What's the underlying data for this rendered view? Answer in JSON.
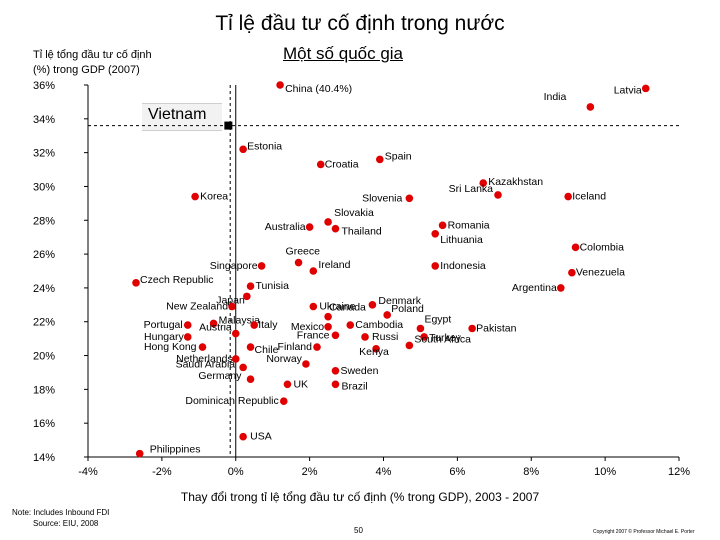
{
  "title": "Tỉ lệ đầu tư cố định trong nước",
  "subtitle": "Một số quốc gia",
  "footer": {
    "note": "Note: Includes Inbound FDI",
    "source": "Source: EIU, 2008",
    "page": "50",
    "copyright": "Copyright 2007 © Professor Michael E. Porter"
  },
  "chart_data": {
    "type": "scatter",
    "title": "Tỉ lệ đầu tư cố định trong nước",
    "subtitle": "Một số quốc gia",
    "ylabel_lines": [
      "Tỉ lệ tổng đầu tư cố định",
      "(%) trong GDP (2007)"
    ],
    "xlabel": "Thay đổi trong tỉ lệ tổng đầu tư cố định (% trong GDP), 2003 - 2007",
    "xlim": [
      -4,
      12
    ],
    "ylim": [
      14,
      36
    ],
    "xticks": [
      -4,
      -2,
      0,
      2,
      4,
      6,
      8,
      10,
      12
    ],
    "xtick_labels": [
      "-4%",
      "-2%",
      "0%",
      "2%",
      "4%",
      "6%",
      "8%",
      "10%",
      "12%"
    ],
    "yticks": [
      14,
      16,
      18,
      20,
      22,
      24,
      26,
      28,
      30,
      32,
      34,
      36
    ],
    "ytick_labels": [
      "14%",
      "16%",
      "18%",
      "20%",
      "22%",
      "24%",
      "26%",
      "28%",
      "30%",
      "32%",
      "34%",
      "36%"
    ],
    "reference_lines": {
      "x_dashed": -0.15,
      "x_solid": 0.0,
      "y_dashed": 33.6
    },
    "highlight": {
      "label": "Vietnam",
      "x": -0.2,
      "y": 33.6
    },
    "points": [
      {
        "label": "China (40.4%)",
        "x": 1.2,
        "y": 36.0
      },
      {
        "label": "Latvia",
        "x": 11.1,
        "y": 35.8
      },
      {
        "label": "India",
        "x": 9.6,
        "y": 34.7
      },
      {
        "label": "Estonia",
        "x": 0.2,
        "y": 32.2
      },
      {
        "label": "Spain",
        "x": 3.9,
        "y": 31.6
      },
      {
        "label": "Croatia",
        "x": 2.3,
        "y": 31.3
      },
      {
        "label": "Kazakhstan",
        "x": 6.7,
        "y": 30.2
      },
      {
        "label": "Sri Lanka",
        "x": 7.1,
        "y": 29.5
      },
      {
        "label": "Iceland",
        "x": 9.0,
        "y": 29.4
      },
      {
        "label": "Korea",
        "x": -1.1,
        "y": 29.4
      },
      {
        "label": "Slovenia",
        "x": 4.7,
        "y": 29.3
      },
      {
        "label": "Slovakia",
        "x": 2.5,
        "y": 27.9
      },
      {
        "label": "Romania",
        "x": 5.6,
        "y": 27.7
      },
      {
        "label": "Australia",
        "x": 2.0,
        "y": 27.6
      },
      {
        "label": "Thailand",
        "x": 2.7,
        "y": 27.5
      },
      {
        "label": "Lithuania",
        "x": 5.4,
        "y": 27.2
      },
      {
        "label": "Colombia",
        "x": 9.2,
        "y": 26.4
      },
      {
        "label": "Greece",
        "x": 1.7,
        "y": 25.5
      },
      {
        "label": "Singapore",
        "x": 0.7,
        "y": 25.3
      },
      {
        "label": "Indonesia",
        "x": 5.4,
        "y": 25.3
      },
      {
        "label": "Ireland",
        "x": 2.1,
        "y": 25.0
      },
      {
        "label": "Venezuela",
        "x": 9.1,
        "y": 24.9
      },
      {
        "label": "Czech Republic",
        "x": -2.7,
        "y": 24.3
      },
      {
        "label": "Tunisia",
        "x": 0.4,
        "y": 24.1
      },
      {
        "label": "Argentina",
        "x": 8.8,
        "y": 24.0
      },
      {
        "label": "Japan",
        "x": 0.3,
        "y": 23.5
      },
      {
        "label": "Denmark",
        "x": 3.7,
        "y": 23.0
      },
      {
        "label": "New Zealand",
        "x": -0.1,
        "y": 22.9
      },
      {
        "label": "Ukraine",
        "x": 2.1,
        "y": 22.9
      },
      {
        "label": "Poland",
        "x": 4.1,
        "y": 22.4
      },
      {
        "label": "Canada",
        "x": 2.5,
        "y": 22.3
      },
      {
        "label": "Portugal",
        "x": -1.3,
        "y": 21.8
      },
      {
        "label": "Malaysia",
        "x": -0.6,
        "y": 21.9
      },
      {
        "label": "Cambodia",
        "x": 3.1,
        "y": 21.8
      },
      {
        "label": "Egypt",
        "x": 5.0,
        "y": 21.6
      },
      {
        "label": "Pakistan",
        "x": 6.4,
        "y": 21.6
      },
      {
        "label": "Italy",
        "x": 0.5,
        "y": 21.8
      },
      {
        "label": "Mexico",
        "x": 2.5,
        "y": 21.7
      },
      {
        "label": "Austria",
        "x": 0.0,
        "y": 21.3
      },
      {
        "label": "France",
        "x": 2.7,
        "y": 21.2
      },
      {
        "label": "Hungary",
        "x": -1.3,
        "y": 21.1
      },
      {
        "label": "Russi",
        "x": 3.5,
        "y": 21.1
      },
      {
        "label": "Turkey",
        "x": 5.1,
        "y": 21.1
      },
      {
        "label": "Hong Kong",
        "x": -0.9,
        "y": 20.5
      },
      {
        "label": "Chile",
        "x": 0.4,
        "y": 20.5
      },
      {
        "label": "Finland",
        "x": 2.2,
        "y": 20.5
      },
      {
        "label": "South Africa",
        "x": 4.7,
        "y": 20.6
      },
      {
        "label": "Kenya",
        "x": 3.8,
        "y": 20.4
      },
      {
        "label": "Netherlands",
        "x": 0.0,
        "y": 19.8
      },
      {
        "label": "Norway",
        "x": 1.9,
        "y": 19.5
      },
      {
        "label": "Saudi Arabia",
        "x": 0.2,
        "y": 19.3
      },
      {
        "label": "Sweden",
        "x": 2.7,
        "y": 19.1
      },
      {
        "label": "Germany",
        "x": 0.4,
        "y": 18.6
      },
      {
        "label": "UK",
        "x": 1.4,
        "y": 18.3
      },
      {
        "label": "Brazil",
        "x": 2.7,
        "y": 18.3
      },
      {
        "label": "Dominican Republic",
        "x": 1.3,
        "y": 17.3
      },
      {
        "label": "USA",
        "x": 0.2,
        "y": 15.2
      },
      {
        "label": "Philippines",
        "x": -2.6,
        "y": 14.2
      }
    ]
  }
}
